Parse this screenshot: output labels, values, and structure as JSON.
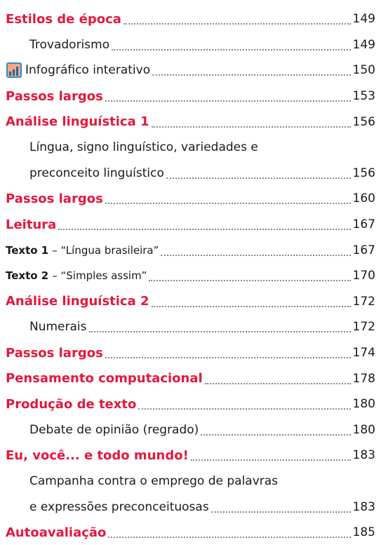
{
  "entries": [
    {
      "kind": "section",
      "lines": [
        "Estilos de época"
      ],
      "page": 149
    },
    {
      "kind": "sub",
      "lines": [
        "Trovadorismo"
      ],
      "page": 149
    },
    {
      "kind": "icon",
      "lines": [
        "Infográfico interativo"
      ],
      "page": 150
    },
    {
      "kind": "section",
      "lines": [
        "Passos largos"
      ],
      "page": 153
    },
    {
      "kind": "section",
      "lines": [
        "Análise linguística 1"
      ],
      "page": 156
    },
    {
      "kind": "sub",
      "lines": [
        "Língua, signo linguístico, variedades e",
        "preconceito linguístico"
      ],
      "page": 156
    },
    {
      "kind": "section",
      "lines": [
        "Passos largos"
      ],
      "page": 160
    },
    {
      "kind": "section",
      "lines": [
        "Leitura"
      ],
      "page": 167
    },
    {
      "kind": "text",
      "label": "Texto 1",
      "lines": [
        "– “Língua brasileira”"
      ],
      "page": 167
    },
    {
      "kind": "text",
      "label": "Texto 2",
      "lines": [
        "– “Simples assim”"
      ],
      "page": 170
    },
    {
      "kind": "section",
      "lines": [
        "Análise linguística 2"
      ],
      "page": 172
    },
    {
      "kind": "sub",
      "lines": [
        "Numerais"
      ],
      "page": 172
    },
    {
      "kind": "section",
      "lines": [
        "Passos largos"
      ],
      "page": 174
    },
    {
      "kind": "section",
      "lines": [
        "Pensamento computacional"
      ],
      "page": 178
    },
    {
      "kind": "section",
      "lines": [
        "Produção de texto"
      ],
      "page": 180
    },
    {
      "kind": "sub",
      "lines": [
        "Debate de opinião (regrado)"
      ],
      "page": 180
    },
    {
      "kind": "section",
      "lines": [
        "Eu, você... e todo mundo!"
      ],
      "page": 183
    },
    {
      "kind": "sub",
      "lines": [
        "Campanha contra o emprego de palavras",
        "e expressões preconceituosas"
      ],
      "page": 183
    },
    {
      "kind": "section",
      "lines": [
        "Autoavaliação"
      ],
      "page": 185
    }
  ]
}
